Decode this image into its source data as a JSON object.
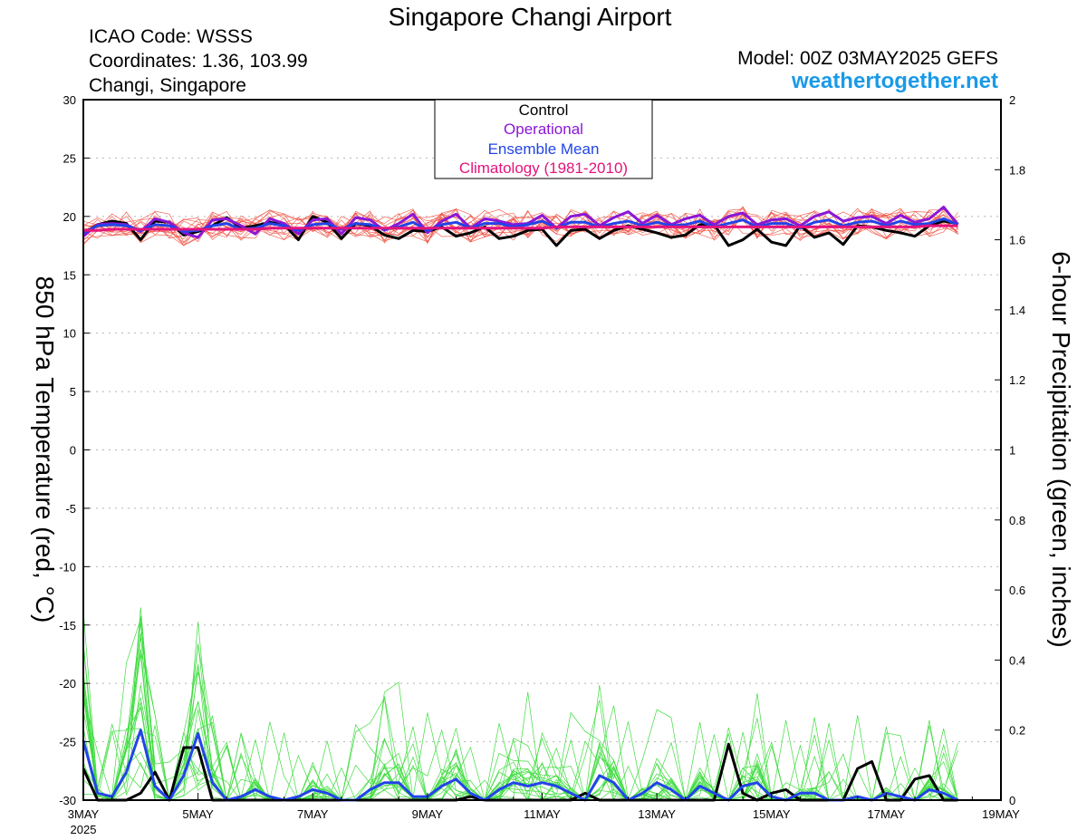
{
  "chart_data": {
    "type": "line",
    "title": "Singapore Changi Airport",
    "station": {
      "icao_line": "ICAO Code: WSSS",
      "coords_line": "Coordinates: 1.36, 103.99",
      "place_line": "Changi, Singapore"
    },
    "model_line": "Model: 00Z 03MAY2025 GEFS",
    "site": "weathertogether.net",
    "ylabel_left": "850 hPa Temperature (red, °C)",
    "ylabel_right": "6-hour Precipitation (green, inches)",
    "ylim_left": [
      -30,
      30
    ],
    "ylim_right": [
      0,
      2
    ],
    "yticks_left": [
      "30",
      "25",
      "20",
      "15",
      "10",
      "5",
      "0",
      "-5",
      "-10",
      "-15",
      "-20",
      "-25",
      "-30"
    ],
    "yticks_right": [
      "2",
      "1.8",
      "1.6",
      "1.4",
      "1.2",
      "1",
      "0.8",
      "0.6",
      "0.4",
      "0.2",
      "0"
    ],
    "xlim_hours": [
      0,
      384
    ],
    "time_step_hours": 6,
    "xticks": [
      {
        "hour": 0,
        "label": "3MAY",
        "sub": "2025"
      },
      {
        "hour": 48,
        "label": "5MAY"
      },
      {
        "hour": 96,
        "label": "7MAY"
      },
      {
        "hour": 144,
        "label": "9MAY"
      },
      {
        "hour": 192,
        "label": "11MAY"
      },
      {
        "hour": 240,
        "label": "13MAY"
      },
      {
        "hour": 288,
        "label": "15MAY"
      },
      {
        "hour": 336,
        "label": "17MAY"
      },
      {
        "hour": 384,
        "label": "19MAY"
      }
    ],
    "grid": true,
    "legend": {
      "position": "top-center",
      "entries": [
        {
          "label": "Control",
          "color": "#000000"
        },
        {
          "label": "Operational",
          "color": "#8a16d8"
        },
        {
          "label": "Ensemble Mean",
          "color": "#2244e8"
        },
        {
          "label": "Climatology (1981-2010)",
          "color": "#e4147c"
        }
      ]
    },
    "series": [
      {
        "name": "Control",
        "axis": "left",
        "color": "#000000",
        "values": [
          18.5,
          19.3,
          19.6,
          19.4,
          18.0,
          19.6,
          19.5,
          18.4,
          18.7,
          19.2,
          19.9,
          19.0,
          19.2,
          19.5,
          19.3,
          18.0,
          20.0,
          19.5,
          18.1,
          19.4,
          19.2,
          18.4,
          18.1,
          18.8,
          18.7,
          19.1,
          18.3,
          18.6,
          19.1,
          18.1,
          18.3,
          18.8,
          18.9,
          17.5,
          18.8,
          18.9,
          18.1,
          18.8,
          19.2,
          18.9,
          18.6,
          18.2,
          18.4,
          19.3,
          19.3,
          17.5,
          18.0,
          18.9,
          17.8,
          17.5,
          19.2,
          18.2,
          18.6,
          17.6,
          19.2,
          19.1,
          18.8,
          18.6,
          18.3,
          19.2,
          19.6,
          19.4
        ]
      },
      {
        "name": "Operational",
        "axis": "left",
        "color": "#8a16d8",
        "values": [
          18.3,
          19.3,
          19.4,
          19.3,
          18.7,
          19.8,
          19.5,
          18.6,
          18.2,
          19.7,
          19.8,
          19.2,
          18.5,
          19.8,
          19.4,
          18.5,
          19.7,
          19.8,
          18.5,
          19.9,
          19.7,
          18.8,
          19.4,
          20.2,
          18.6,
          19.6,
          20.2,
          19.0,
          19.8,
          19.6,
          19.3,
          19.4,
          20.1,
          19.0,
          20.0,
          20.2,
          19.2,
          19.9,
          20.4,
          19.4,
          20.1,
          19.3,
          19.8,
          20.1,
          19.3,
          20.0,
          20.3,
          19.3,
          19.7,
          19.8,
          19.2,
          20.0,
          20.4,
          19.6,
          19.9,
          20.0,
          19.4,
          20.1,
          19.5,
          19.8,
          20.8,
          19.3
        ]
      },
      {
        "name": "Ensemble Mean",
        "axis": "left",
        "color": "#2244e8",
        "values": [
          18.6,
          19.2,
          19.3,
          19.2,
          18.8,
          19.3,
          19.2,
          18.7,
          18.8,
          19.2,
          19.4,
          18.9,
          19.0,
          19.4,
          19.2,
          18.8,
          19.3,
          19.4,
          18.9,
          19.4,
          19.3,
          18.9,
          19.1,
          19.5,
          18.8,
          19.3,
          19.5,
          19.0,
          19.4,
          19.4,
          19.1,
          19.3,
          19.6,
          19.0,
          19.5,
          19.5,
          19.1,
          19.4,
          19.6,
          19.2,
          19.5,
          19.2,
          19.3,
          19.6,
          19.1,
          19.4,
          19.7,
          19.1,
          19.4,
          19.4,
          19.0,
          19.5,
          19.7,
          19.2,
          19.5,
          19.6,
          19.2,
          19.6,
          19.3,
          19.4,
          19.8,
          19.3
        ]
      },
      {
        "name": "Climatology (1981-2010)",
        "axis": "left",
        "color": "#e4147c",
        "values": [
          18.8,
          18.8,
          18.9,
          18.9,
          18.9,
          18.9,
          18.9,
          18.9,
          18.9,
          18.9,
          18.9,
          18.9,
          18.9,
          19.0,
          19.0,
          19.0,
          19.0,
          19.0,
          19.0,
          19.0,
          19.0,
          19.0,
          19.0,
          19.0,
          19.0,
          19.0,
          19.0,
          19.0,
          19.0,
          19.0,
          19.0,
          19.0,
          19.0,
          19.1,
          19.1,
          19.1,
          19.1,
          19.1,
          19.1,
          19.1,
          19.1,
          19.1,
          19.1,
          19.1,
          19.1,
          19.1,
          19.1,
          19.1,
          19.1,
          19.1,
          19.1,
          19.1,
          19.1,
          19.1,
          19.1,
          19.1,
          19.1,
          19.1,
          19.1,
          19.2,
          19.2,
          19.2
        ]
      },
      {
        "name": "Control",
        "axis": "right",
        "color": "#000000",
        "values": [
          0.09,
          0.0,
          0.0,
          0.0,
          0.02,
          0.08,
          0.0,
          0.15,
          0.15,
          0.0,
          0.0,
          0.0,
          0.0,
          0.0,
          0.0,
          0.0,
          0.0,
          0.0,
          0.0,
          0.0,
          0.0,
          0.0,
          0.0,
          0.0,
          0.0,
          0.0,
          0.0,
          0.01,
          0.0,
          0.0,
          0.0,
          0.0,
          0.0,
          0.0,
          0.0,
          0.02,
          0.0,
          0.0,
          0.0,
          0.0,
          0.0,
          0.0,
          0.0,
          0.0,
          0.0,
          0.16,
          0.02,
          0.0,
          0.02,
          0.03,
          0.0,
          0.0,
          0.0,
          0.0,
          0.09,
          0.11,
          0.0,
          0.0,
          0.06,
          0.07,
          0.0,
          0.0
        ]
      },
      {
        "name": "Ensemble Mean",
        "axis": "right",
        "color": "#2244e8",
        "values": [
          0.17,
          0.02,
          0.01,
          0.08,
          0.2,
          0.04,
          0.0,
          0.07,
          0.19,
          0.05,
          0.0,
          0.01,
          0.03,
          0.01,
          0.0,
          0.01,
          0.03,
          0.02,
          0.0,
          0.0,
          0.03,
          0.05,
          0.05,
          0.01,
          0.01,
          0.04,
          0.06,
          0.02,
          0.0,
          0.03,
          0.05,
          0.04,
          0.05,
          0.04,
          0.02,
          0.0,
          0.07,
          0.05,
          0.0,
          0.02,
          0.05,
          0.03,
          0.0,
          0.04,
          0.02,
          0.0,
          0.04,
          0.05,
          0.01,
          0.0,
          0.02,
          0.02,
          0.0,
          0.0,
          0.01,
          0.0,
          0.02,
          0.01,
          0.0,
          0.03,
          0.02,
          0.0
        ]
      }
    ]
  }
}
